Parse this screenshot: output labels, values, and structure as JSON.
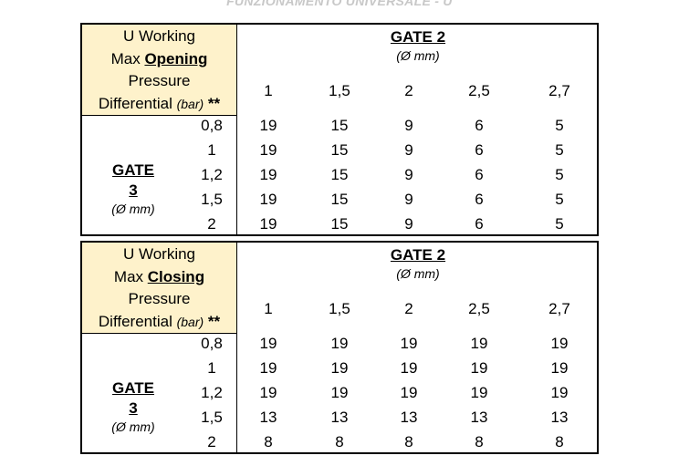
{
  "page_header": "FUNZIONAMENTO UNIVERSALE - U",
  "tables": [
    {
      "title_line1": "U Working",
      "title_prefix": "Max ",
      "title_bold": "Opening",
      "title_line3": "Pressure",
      "title_line4": "Differential ",
      "title_unit": "(bar)",
      "title_stars": " **",
      "gate2_title": "GATE 2",
      "gate2_unit": "(Ø mm)",
      "gate3_title": "GATE 3",
      "gate3_unit": "(Ø mm)",
      "columns": [
        "1",
        "1,5",
        "2",
        "2,5",
        "2,7"
      ],
      "rows": [
        "0,8",
        "1",
        "1,2",
        "1,5",
        "2"
      ],
      "values": [
        [
          "19",
          "15",
          "9",
          "6",
          "5"
        ],
        [
          "19",
          "15",
          "9",
          "6",
          "5"
        ],
        [
          "19",
          "15",
          "9",
          "6",
          "5"
        ],
        [
          "19",
          "15",
          "9",
          "6",
          "5"
        ],
        [
          "19",
          "15",
          "9",
          "6",
          "5"
        ]
      ]
    },
    {
      "title_line1": "U Working",
      "title_prefix": "Max ",
      "title_bold": "Closing",
      "title_line3": "Pressure",
      "title_line4": "Differential ",
      "title_unit": "(bar)",
      "title_stars": " **",
      "gate2_title": "GATE 2",
      "gate2_unit": "(Ø mm)",
      "gate3_title": "GATE 3",
      "gate3_unit": "(Ø mm)",
      "columns": [
        "1",
        "1,5",
        "2",
        "2,5",
        "2,7"
      ],
      "rows": [
        "0,8",
        "1",
        "1,2",
        "1,5",
        "2"
      ],
      "values": [
        [
          "19",
          "19",
          "19",
          "19",
          "19"
        ],
        [
          "19",
          "19",
          "19",
          "19",
          "19"
        ],
        [
          "19",
          "19",
          "19",
          "19",
          "19"
        ],
        [
          "13",
          "13",
          "13",
          "13",
          "13"
        ],
        [
          "8",
          "8",
          "8",
          "8",
          "8"
        ]
      ]
    }
  ],
  "colors": {
    "header_fill": "#fef2cb",
    "border": "#000000"
  }
}
